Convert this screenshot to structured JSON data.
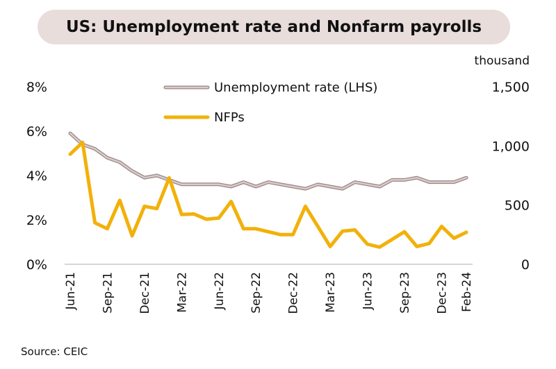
{
  "title": "US: Unemployment rate and Nonfarm payrolls",
  "source": "Source: CEIC",
  "chart_data": {
    "type": "line",
    "title": "US: Unemployment rate and Nonfarm payrolls",
    "x": [
      "Jun-21",
      "Jul-21",
      "Aug-21",
      "Sep-21",
      "Oct-21",
      "Nov-21",
      "Dec-21",
      "Jan-22",
      "Feb-22",
      "Mar-22",
      "Apr-22",
      "May-22",
      "Jun-22",
      "Jul-22",
      "Aug-22",
      "Sep-22",
      "Oct-22",
      "Nov-22",
      "Dec-22",
      "Jan-23",
      "Feb-23",
      "Mar-23",
      "Apr-23",
      "May-23",
      "Jun-23",
      "Jul-23",
      "Aug-23",
      "Sep-23",
      "Oct-23",
      "Nov-23",
      "Dec-23",
      "Jan-24",
      "Feb-24"
    ],
    "x_tick_labels": [
      "Jun-21",
      "Sep-21",
      "Dec-21",
      "Mar-22",
      "Jun-22",
      "Sep-22",
      "Dec-22",
      "Mar-23",
      "Jun-23",
      "Sep-23",
      "Dec-23",
      "Feb-24"
    ],
    "y_left": {
      "label": "",
      "ticks": [
        "0%",
        "2%",
        "4%",
        "6%",
        "8%"
      ],
      "range": [
        0,
        8
      ]
    },
    "y_right": {
      "label": "thousand",
      "ticks": [
        "0",
        "500",
        "1,000",
        "1,500"
      ],
      "range": [
        0,
        1500
      ]
    },
    "grid": false,
    "legend_position": "top",
    "series": [
      {
        "name": "Unemployment rate (LHS)",
        "axis": "left",
        "color": "#d9cccc",
        "outline": "#9b8585",
        "values": [
          5.9,
          5.4,
          5.2,
          4.8,
          4.6,
          4.2,
          3.9,
          4.0,
          3.8,
          3.6,
          3.6,
          3.6,
          3.6,
          3.5,
          3.7,
          3.5,
          3.7,
          3.6,
          3.5,
          3.4,
          3.6,
          3.5,
          3.4,
          3.7,
          3.6,
          3.5,
          3.8,
          3.8,
          3.9,
          3.7,
          3.7,
          3.7,
          3.9
        ]
      },
      {
        "name": "NFPs",
        "axis": "right",
        "color": "#f2b10a",
        "values": [
          930,
          1030,
          350,
          300,
          540,
          240,
          490,
          470,
          730,
          420,
          425,
          380,
          390,
          530,
          300,
          300,
          275,
          250,
          250,
          490,
          320,
          150,
          280,
          290,
          170,
          145,
          210,
          275,
          150,
          175,
          320,
          220,
          270
        ]
      }
    ]
  }
}
